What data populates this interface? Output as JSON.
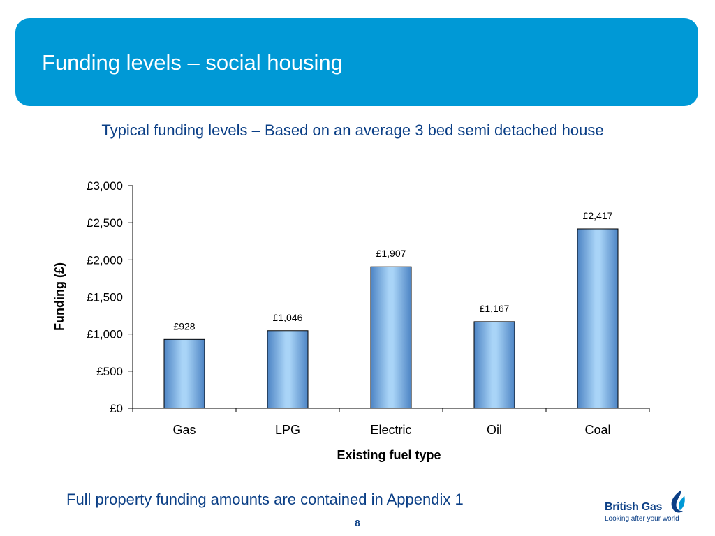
{
  "slide": {
    "title": "Funding levels – social housing",
    "subtitle": "Typical funding levels – Based on an average 3 bed semi detached house",
    "footnote": "Full property funding amounts are contained in Appendix 1",
    "page_number": "8"
  },
  "logo": {
    "name": "British Gas",
    "tagline": "Looking after your world",
    "icon": "flame-icon"
  },
  "colors": {
    "header": "#0099d6",
    "text_accent": "#0b3f86",
    "bar_fill_light": "#a9d4f7",
    "bar_fill_dark": "#4d84c4"
  },
  "chart_data": {
    "type": "bar",
    "categories": [
      "Gas",
      "LPG",
      "Electric",
      "Oil",
      "Coal"
    ],
    "values": [
      928,
      1046,
      1907,
      1167,
      2417
    ],
    "data_labels": [
      "£928",
      "£1,046",
      "£1,907",
      "£1,167",
      "£2,417"
    ],
    "xlabel": "Existing fuel type",
    "ylabel": "Funding (£)",
    "ylim": [
      0,
      3000
    ],
    "yticks": [
      0,
      500,
      1000,
      1500,
      2000,
      2500,
      3000
    ],
    "ytick_labels": [
      "£0",
      "£500",
      "£1,000",
      "£1,500",
      "£2,000",
      "£2,500",
      "£3,000"
    ],
    "grid": false,
    "legend": false
  }
}
